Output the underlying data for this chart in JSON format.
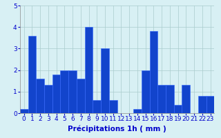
{
  "values": [
    0.2,
    3.6,
    1.6,
    1.3,
    1.8,
    2.0,
    2.0,
    1.6,
    4.0,
    0.6,
    3.0,
    0.6,
    0.0,
    0.0,
    0.2,
    2.0,
    3.8,
    1.3,
    1.3,
    0.4,
    1.3,
    0.0,
    0.8,
    0.8
  ],
  "bar_color": "#1244cc",
  "bar_edge_color": "#3366ff",
  "background_color": "#d8f0f4",
  "grid_color": "#aacccc",
  "xlabel": "Précipitations 1h ( mm )",
  "xlabel_color": "#0000cc",
  "tick_color": "#0000cc",
  "ylim": [
    0,
    5
  ],
  "yticks": [
    0,
    1,
    2,
    3,
    4,
    5
  ],
  "xlabel_fontsize": 7.5,
  "tick_fontsize": 6.5
}
